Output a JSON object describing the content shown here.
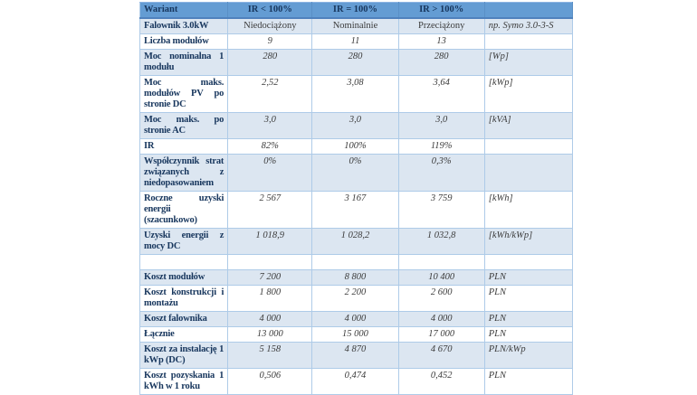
{
  "colors": {
    "header_bg": "#649cd3",
    "header_text": "#17365d",
    "header_divider": "#4f81bd",
    "row_shaded_bg": "#dce6f1",
    "row_plain_bg": "#ffffff",
    "grid_border": "#aecbe8",
    "label_text": "#17365d",
    "value_text": "#3b3b3b"
  },
  "table": {
    "header": {
      "cells": [
        "Wariant",
        "IR < 100%",
        "IR = 100%",
        "IR > 100%",
        ""
      ]
    },
    "rows": [
      {
        "label": "Falownik 3.0kW",
        "values": [
          "Niedociążony",
          "Nominalnie",
          "Przeciążony"
        ],
        "unit": "np. Symo 3.0-3-S",
        "values_italic": false
      },
      {
        "label": "Liczba modułów",
        "values": [
          "9",
          "11",
          "13"
        ],
        "unit": ""
      },
      {
        "label": "Moc nominalna 1 modułu",
        "values": [
          "280",
          "280",
          "280"
        ],
        "unit": "[Wp]"
      },
      {
        "label": "Moc maks. modułów PV po stronie DC",
        "values": [
          "2,52",
          "3,08",
          "3,64"
        ],
        "unit": "[kWp]"
      },
      {
        "label": "Moc maks. po stronie AC",
        "values": [
          "3,0",
          "3,0",
          "3,0"
        ],
        "unit": "[kVA]"
      },
      {
        "label": "IR",
        "values": [
          "82%",
          "100%",
          "119%"
        ],
        "unit": ""
      },
      {
        "label": "Współczynnik strat związanych z niedopasowaniem",
        "values": [
          "0%",
          "0%",
          "0,3%"
        ],
        "unit": ""
      },
      {
        "label": "Roczne uzyski energii (szacunkowo)",
        "values": [
          "2 567",
          "3 167",
          "3 759"
        ],
        "unit": "[kWh]"
      },
      {
        "label": "Uzyski energii z mocy DC",
        "values": [
          "1 018,9",
          "1 028,2",
          "1 032,8"
        ],
        "unit": "[kWh/kWp]"
      },
      {
        "label": "",
        "values": [
          "",
          "",
          ""
        ],
        "unit": "",
        "spacer": true
      },
      {
        "label": "Koszt modułów",
        "values": [
          "7 200",
          "8 800",
          "10 400"
        ],
        "unit": "PLN"
      },
      {
        "label": "Koszt konstrukcji i montażu",
        "values": [
          "1 800",
          "2 200",
          "2 600"
        ],
        "unit": "PLN"
      },
      {
        "label": "Koszt falownika",
        "values": [
          "4 000",
          "4 000",
          "4 000"
        ],
        "unit": "PLN"
      },
      {
        "label": "Łącznie",
        "values": [
          "13 000",
          "15 000",
          "17 000"
        ],
        "unit": "PLN"
      },
      {
        "label": "Koszt za instalację 1 kWp (DC)",
        "values": [
          "5 158",
          "4 870",
          "4 670"
        ],
        "unit": "PLN/kWp"
      },
      {
        "label": "Koszt pozyskania 1 kWh w 1 roku",
        "values": [
          "0,506",
          "0,474",
          "0,452"
        ],
        "unit": "PLN"
      }
    ]
  }
}
